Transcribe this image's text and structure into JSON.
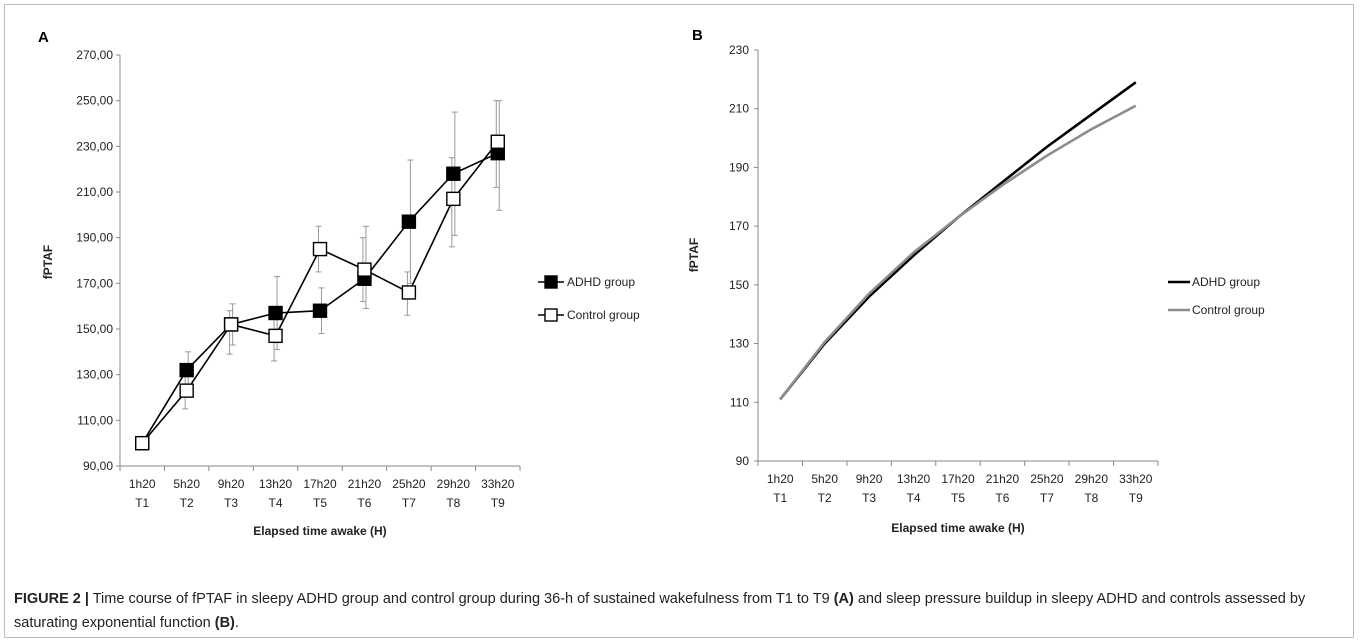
{
  "caption": {
    "label": "FIGURE 2 |",
    "text_1": " Time course of fPTAF in sleepy ADHD group and control group during 36-h of sustained wakefulness from T1 to T9 ",
    "ref_a": "(A)",
    "text_2": " and sleep pressure buildup in sleepy ADHD and controls assessed by saturating exponential function ",
    "ref_b": "(B)",
    "text_3": "."
  },
  "chart_data": [
    {
      "panel": "A",
      "type": "line",
      "title": "",
      "xlabel": "Elapsed time awake (H)",
      "ylabel": "fPTAF",
      "categories": [
        [
          "1h20",
          "T1"
        ],
        [
          "5h20",
          "T2"
        ],
        [
          "9h20",
          "T3"
        ],
        [
          "13h20",
          "T4"
        ],
        [
          "17h20",
          "T5"
        ],
        [
          "21h20",
          "T6"
        ],
        [
          "25h20",
          "T7"
        ],
        [
          "29h20",
          "T8"
        ],
        [
          "33h20",
          "T9"
        ]
      ],
      "ylim": [
        90,
        270
      ],
      "yticks": [
        90,
        110,
        130,
        150,
        170,
        190,
        210,
        230,
        250,
        270
      ],
      "ytick_labels": [
        "90,00",
        "110,00",
        "130,00",
        "150,00",
        "170,00",
        "190,00",
        "210,00",
        "230,00",
        "250,00",
        "270,00"
      ],
      "legend_position": "right",
      "grid": false,
      "series": [
        {
          "name": "ADHD group",
          "marker": "filled-square",
          "color": "#000000",
          "values": [
            100,
            132,
            152,
            157,
            158,
            172,
            197,
            218,
            227
          ],
          "error_upper": [
            null,
            140,
            161,
            173,
            168,
            195,
            224,
            245,
            250
          ],
          "error_lower": [
            null,
            124,
            143,
            141,
            148,
            159,
            170,
            191,
            202
          ]
        },
        {
          "name": "Control group",
          "marker": "open-square",
          "color": "#000000",
          "values": [
            100,
            123,
            152,
            147,
            185,
            176,
            166,
            207,
            232
          ],
          "error_upper": [
            null,
            131,
            158,
            155,
            195,
            190,
            175,
            225,
            250
          ],
          "error_lower": [
            null,
            115,
            139,
            136,
            175,
            162,
            156,
            186,
            212
          ]
        }
      ]
    },
    {
      "panel": "B",
      "type": "line",
      "title": "",
      "xlabel": "Elapsed time awake (H)",
      "ylabel": "fPTAF",
      "categories": [
        [
          "1h20",
          "T1"
        ],
        [
          "5h20",
          "T2"
        ],
        [
          "9h20",
          "T3"
        ],
        [
          "13h20",
          "T4"
        ],
        [
          "17h20",
          "T5"
        ],
        [
          "21h20",
          "T6"
        ],
        [
          "25h20",
          "T7"
        ],
        [
          "29h20",
          "T8"
        ],
        [
          "33h20",
          "T9"
        ]
      ],
      "ylim": [
        90,
        230
      ],
      "yticks": [
        90,
        110,
        130,
        150,
        170,
        190,
        210,
        230
      ],
      "ytick_labels": [
        "90",
        "110",
        "130",
        "150",
        "170",
        "190",
        "210",
        "230"
      ],
      "legend_position": "right",
      "grid": false,
      "series": [
        {
          "name": "ADHD group",
          "color": "#000000",
          "values": [
            111,
            130,
            146,
            160,
            173,
            185,
            197,
            208,
            219
          ]
        },
        {
          "name": "Control group",
          "color": "#8c8c8c",
          "values": [
            111,
            130.5,
            147,
            161,
            173,
            184,
            194,
            203,
            211
          ]
        }
      ]
    }
  ]
}
